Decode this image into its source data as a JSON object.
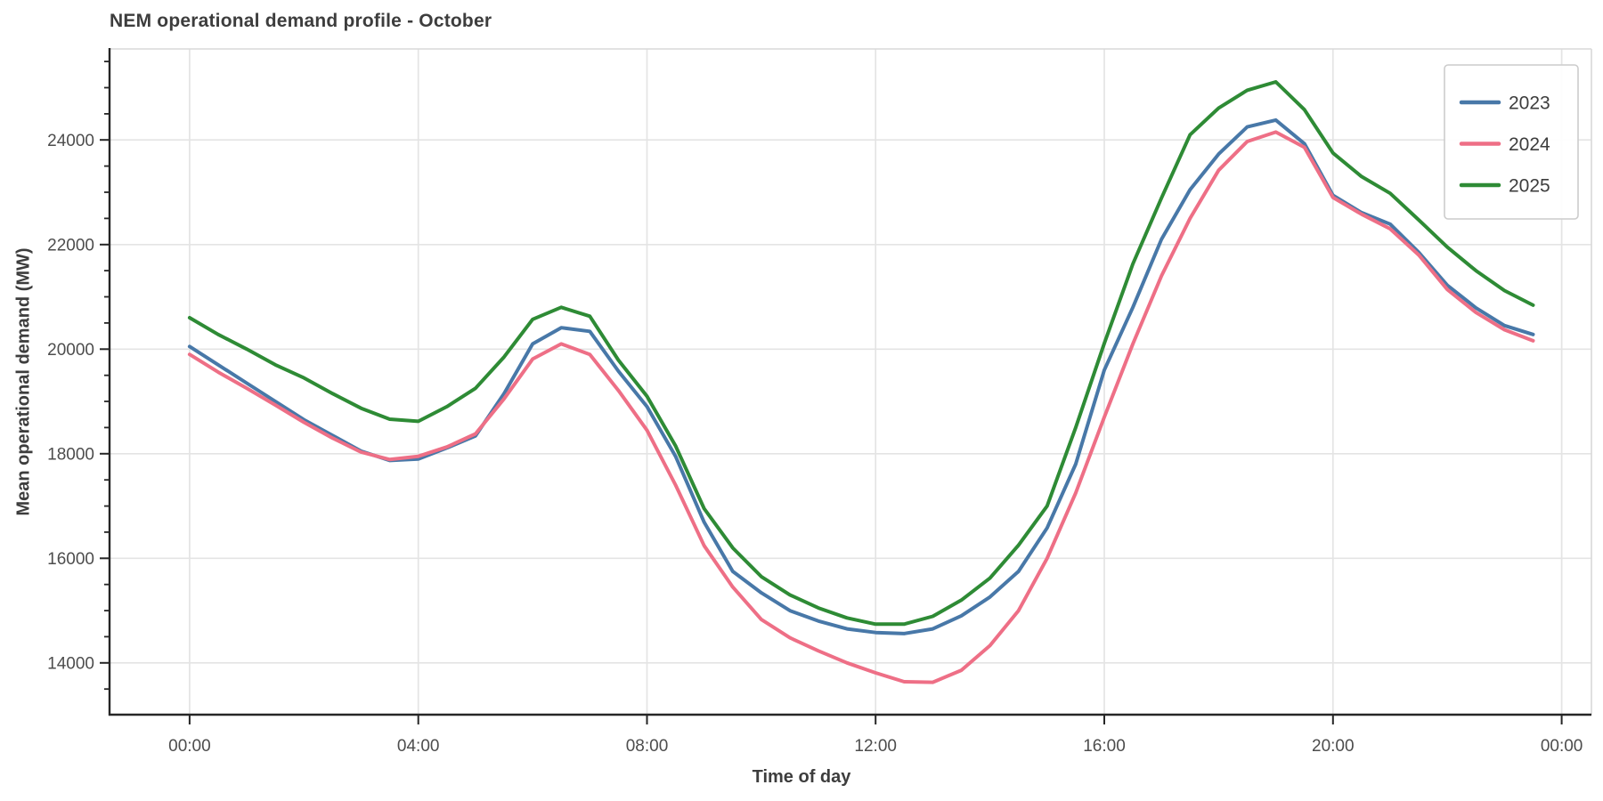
{
  "chart_data": {
    "type": "line",
    "title": "NEM operational demand profile - October",
    "xlabel": "Time of day",
    "ylabel": "Mean operational demand (MW)",
    "xlim": [
      -1.4,
      24.52
    ],
    "ylim": [
      13010,
      25740
    ],
    "grid": true,
    "legend_position": "upper right",
    "x_ticks": [
      {
        "hour": 0,
        "label": "00:00"
      },
      {
        "hour": 4,
        "label": "04:00"
      },
      {
        "hour": 8,
        "label": "08:00"
      },
      {
        "hour": 12,
        "label": "12:00"
      },
      {
        "hour": 16,
        "label": "16:00"
      },
      {
        "hour": 20,
        "label": "20:00"
      },
      {
        "hour": 24,
        "label": "00:00"
      }
    ],
    "y_ticks": [
      14000,
      16000,
      18000,
      20000,
      22000,
      24000
    ],
    "y_minor_step": 500,
    "x_hours": [
      0,
      0.5,
      1,
      1.5,
      2,
      2.5,
      3,
      3.5,
      4,
      4.5,
      5,
      5.5,
      6,
      6.5,
      7,
      7.5,
      8,
      8.5,
      9,
      9.5,
      10,
      10.5,
      11,
      11.5,
      12,
      12.5,
      13,
      13.5,
      14,
      14.5,
      15,
      15.5,
      16,
      16.5,
      17,
      17.5,
      18,
      18.5,
      19,
      19.5,
      20,
      20.5,
      21,
      21.5,
      22,
      22.5,
      23,
      23.5
    ],
    "series": [
      {
        "name": "2023",
        "color": "#4878a8",
        "values": [
          20050,
          19700,
          19350,
          19000,
          18650,
          18350,
          18050,
          17870,
          17900,
          18110,
          18340,
          19150,
          20100,
          20410,
          20340,
          19580,
          18900,
          17950,
          16690,
          15750,
          15340,
          15000,
          14800,
          14650,
          14580,
          14560,
          14650,
          14900,
          15260,
          15750,
          16580,
          17800,
          19600,
          20800,
          22100,
          23050,
          23730,
          24250,
          24380,
          23930,
          22940,
          22610,
          22390,
          21850,
          21220,
          20790,
          20450,
          20280
        ]
      },
      {
        "name": "2024",
        "color": "#ee6f86",
        "values": [
          19900,
          19560,
          19250,
          18930,
          18600,
          18300,
          18030,
          17890,
          17950,
          18130,
          18380,
          19050,
          19810,
          20100,
          19900,
          19210,
          18450,
          17400,
          16240,
          15450,
          14830,
          14480,
          14230,
          14000,
          13810,
          13640,
          13630,
          13860,
          14330,
          15000,
          16000,
          17250,
          18700,
          20100,
          21400,
          22500,
          23420,
          23970,
          24150,
          23860,
          22900,
          22580,
          22300,
          21800,
          21140,
          20700,
          20370,
          20160
        ]
      },
      {
        "name": "2025",
        "color": "#2e8b35",
        "values": [
          20600,
          20280,
          20000,
          19700,
          19450,
          19150,
          18870,
          18660,
          18620,
          18900,
          19250,
          19850,
          20570,
          20800,
          20630,
          19790,
          19100,
          18150,
          16950,
          16200,
          15650,
          15300,
          15050,
          14860,
          14740,
          14740,
          14890,
          15200,
          15620,
          16250,
          17000,
          18500,
          20110,
          21630,
          22890,
          24100,
          24610,
          24950,
          25110,
          24580,
          23750,
          23300,
          22980,
          22470,
          21950,
          21500,
          21120,
          20840
        ]
      }
    ],
    "colors": {
      "grid": "#e4e4e4",
      "spine_dark": "#262626",
      "spine_light": "#d9d9d9",
      "tick_label": "#4d4d4d",
      "text": "#3d3d3d",
      "legend_border": "#cccccc",
      "legend_bg": "#ffffff"
    }
  }
}
